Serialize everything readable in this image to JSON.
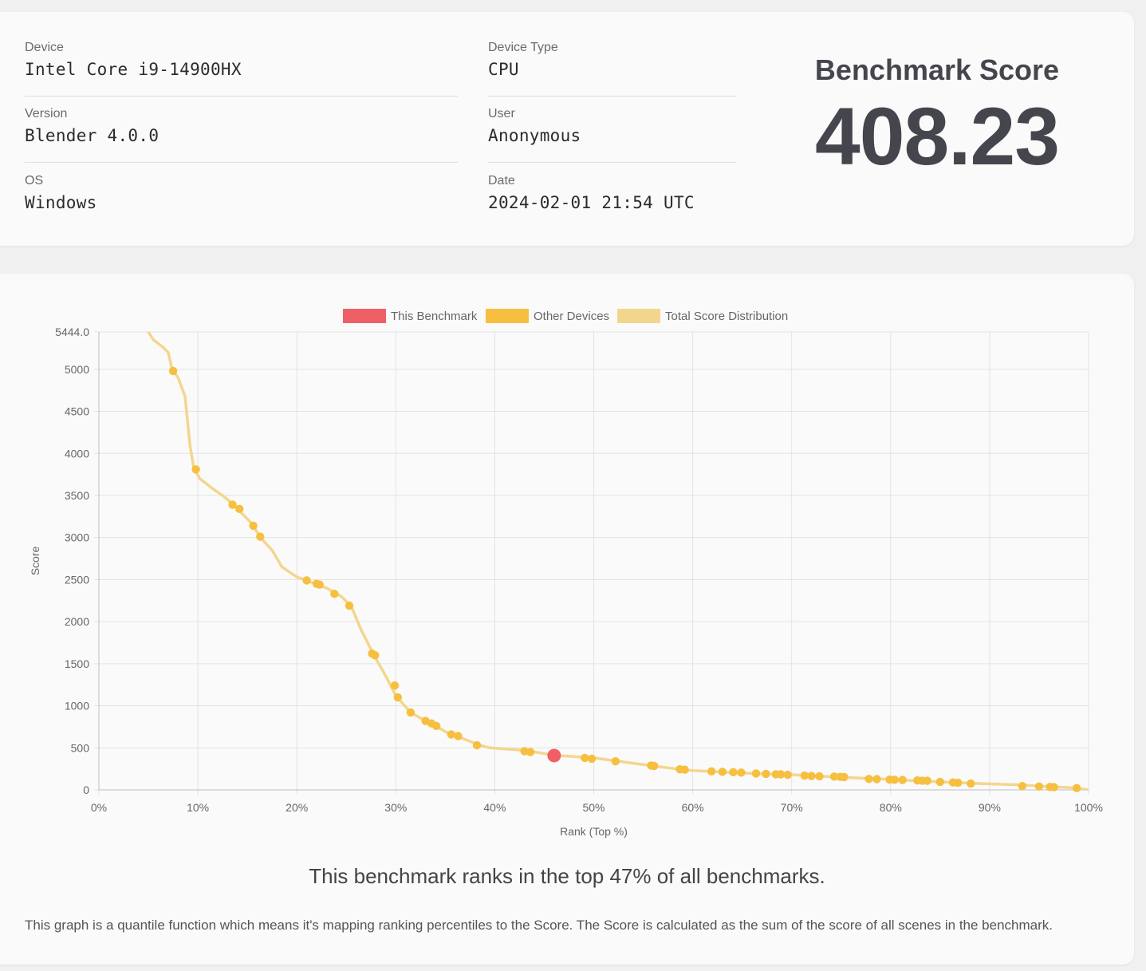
{
  "info": {
    "device_label": "Device",
    "device_value": "Intel Core i9-14900HX",
    "version_label": "Version",
    "version_value": "Blender 4.0.0",
    "os_label": "OS",
    "os_value": "Windows",
    "device_type_label": "Device Type",
    "device_type_value": "CPU",
    "user_label": "User",
    "user_value": "Anonymous",
    "date_label": "Date",
    "date_value": "2024-02-01 21:54 UTC"
  },
  "score": {
    "title": "Benchmark Score",
    "value": "408.23"
  },
  "summary": {
    "rank_text": "This benchmark ranks in the top 47% of all benchmarks.",
    "note": "This graph is a quantile function which means it's mapping ranking percentiles to the Score. The Score is calculated as the sum of the score of all scenes in the benchmark."
  },
  "chart_data": {
    "type": "scatter",
    "xlabel": "Rank (Top %)",
    "ylabel": "Score",
    "xlim": [
      0,
      100
    ],
    "ylim": [
      0,
      5444.0
    ],
    "x_ticks": [
      "0%",
      "10%",
      "20%",
      "30%",
      "40%",
      "50%",
      "60%",
      "70%",
      "80%",
      "90%",
      "100%"
    ],
    "y_ticks": [
      "0",
      "500",
      "1000",
      "1500",
      "2000",
      "2500",
      "3000",
      "3500",
      "4000",
      "4500",
      "5000",
      "5444.0"
    ],
    "y_tick_values": [
      0,
      500,
      1000,
      1500,
      2000,
      2500,
      3000,
      3500,
      4000,
      4500,
      5000,
      5444
    ],
    "grid": true,
    "legend_position": "top",
    "legend": [
      {
        "name": "This Benchmark",
        "color": "#ee6066"
      },
      {
        "name": "Other Devices",
        "color": "#f6bf3f"
      },
      {
        "name": "Total Score Distribution",
        "color": "#f3d68e"
      }
    ],
    "distribution": [
      [
        5.0,
        5444
      ],
      [
        5.5,
        5350
      ],
      [
        6.5,
        5260
      ],
      [
        7.0,
        5200
      ],
      [
        7.4,
        5000
      ],
      [
        8.0,
        4900
      ],
      [
        8.7,
        4680
      ],
      [
        9.2,
        4100
      ],
      [
        9.6,
        3820
      ],
      [
        10.2,
        3700
      ],
      [
        11.5,
        3580
      ],
      [
        12.5,
        3500
      ],
      [
        13.5,
        3400
      ],
      [
        15.5,
        3160
      ],
      [
        16.3,
        3000
      ],
      [
        17.5,
        2850
      ],
      [
        18.5,
        2650
      ],
      [
        20.0,
        2530
      ],
      [
        21.0,
        2490
      ],
      [
        23.0,
        2400
      ],
      [
        24.5,
        2300
      ],
      [
        25.5,
        2180
      ],
      [
        26.5,
        1900
      ],
      [
        27.8,
        1600
      ],
      [
        29.0,
        1350
      ],
      [
        30.0,
        1120
      ],
      [
        31.5,
        920
      ],
      [
        33.0,
        820
      ],
      [
        34.0,
        760
      ],
      [
        35.5,
        660
      ],
      [
        37.0,
        600
      ],
      [
        38.5,
        530
      ],
      [
        39.5,
        500
      ],
      [
        43.0,
        470
      ],
      [
        46.0,
        412
      ],
      [
        50.0,
        380
      ],
      [
        55.0,
        300
      ],
      [
        59.0,
        240
      ],
      [
        60.0,
        230
      ],
      [
        65.0,
        200
      ],
      [
        70.0,
        180
      ],
      [
        75.0,
        150
      ],
      [
        80.0,
        125
      ],
      [
        83.0,
        105
      ],
      [
        88.0,
        80
      ],
      [
        93.0,
        60
      ],
      [
        96.5,
        35
      ],
      [
        98.5,
        25
      ],
      [
        100.0,
        0
      ]
    ],
    "other_devices": [
      [
        7.5,
        4980
      ],
      [
        9.8,
        3810
      ],
      [
        13.5,
        3390
      ],
      [
        14.2,
        3340
      ],
      [
        15.6,
        3140
      ],
      [
        16.3,
        3010
      ],
      [
        21.0,
        2490
      ],
      [
        22.0,
        2450
      ],
      [
        22.3,
        2440
      ],
      [
        23.8,
        2330
      ],
      [
        25.3,
        2190
      ],
      [
        27.6,
        1620
      ],
      [
        27.9,
        1600
      ],
      [
        29.9,
        1240
      ],
      [
        30.2,
        1100
      ],
      [
        31.5,
        920
      ],
      [
        33.0,
        820
      ],
      [
        33.6,
        790
      ],
      [
        34.1,
        760
      ],
      [
        35.6,
        660
      ],
      [
        36.3,
        640
      ],
      [
        38.2,
        530
      ],
      [
        43.0,
        460
      ],
      [
        43.6,
        450
      ],
      [
        49.1,
        380
      ],
      [
        49.8,
        370
      ],
      [
        52.2,
        340
      ],
      [
        55.8,
        290
      ],
      [
        56.1,
        285
      ],
      [
        58.7,
        245
      ],
      [
        59.2,
        240
      ],
      [
        61.9,
        220
      ],
      [
        63.0,
        215
      ],
      [
        64.1,
        210
      ],
      [
        64.9,
        205
      ],
      [
        66.4,
        195
      ],
      [
        67.4,
        190
      ],
      [
        68.4,
        185
      ],
      [
        68.9,
        185
      ],
      [
        69.6,
        180
      ],
      [
        71.3,
        170
      ],
      [
        72.0,
        165
      ],
      [
        72.8,
        162
      ],
      [
        74.3,
        158
      ],
      [
        74.9,
        155
      ],
      [
        75.3,
        152
      ],
      [
        77.8,
        130
      ],
      [
        78.6,
        128
      ],
      [
        79.9,
        123
      ],
      [
        80.4,
        120
      ],
      [
        81.2,
        118
      ],
      [
        82.7,
        112
      ],
      [
        83.2,
        110
      ],
      [
        83.7,
        108
      ],
      [
        85.0,
        95
      ],
      [
        86.3,
        88
      ],
      [
        86.8,
        85
      ],
      [
        88.1,
        75
      ],
      [
        93.3,
        45
      ],
      [
        95.0,
        40
      ],
      [
        96.1,
        35
      ],
      [
        96.5,
        33
      ],
      [
        98.8,
        22
      ]
    ],
    "this_benchmark": [
      46.0,
      408.23
    ]
  }
}
